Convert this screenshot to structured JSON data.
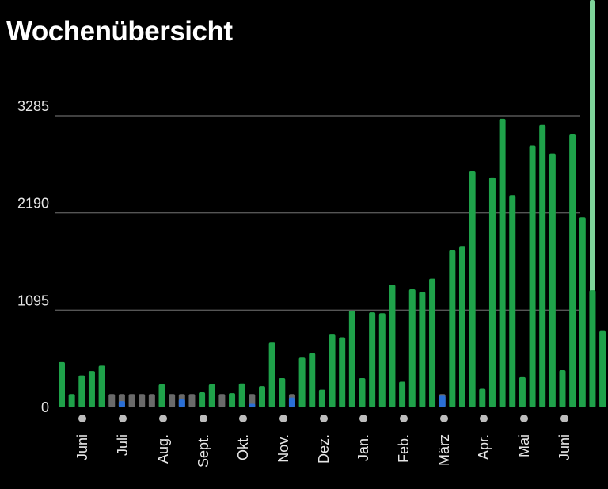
{
  "title": "Wochenübersicht",
  "colors": {
    "primary": "#1fa24a",
    "grey": "#6a6a6a",
    "blue": "#2a6fd6",
    "grid": "#555555",
    "dot": "#bdbdbd",
    "scrollbar": "#7fd49a"
  },
  "chart_data": {
    "type": "bar",
    "y_ticks": [
      0,
      1095,
      2190,
      3285
    ],
    "ylim": [
      0,
      3285
    ],
    "x_tick_labels": [
      "Juni",
      "Juli",
      "Aug.",
      "Sept.",
      "Okt.",
      "Nov.",
      "Dez.",
      "Jan.",
      "Feb.",
      "März",
      "Apr.",
      "Mai",
      "Juni"
    ],
    "series": [
      {
        "values": [
          510,
          150,
          360,
          410,
          470,
          0,
          0,
          0,
          0,
          0,
          260,
          0,
          0,
          0,
          170,
          260,
          0,
          160,
          270,
          0,
          240,
          730,
          330,
          0,
          560,
          610,
          200,
          820,
          790,
          1090,
          330,
          1070,
          1060,
          1380,
          290,
          1330,
          1300,
          1450,
          0,
          1770,
          1810,
          2660,
          210,
          2590,
          3250,
          2390,
          340,
          2950,
          3180,
          2860,
          420,
          3080,
          2140,
          1320,
          860
        ]
      },
      {
        "values": [
          0,
          0,
          0,
          0,
          0,
          150,
          150,
          150,
          150,
          150,
          0,
          150,
          150,
          150,
          0,
          0,
          150,
          0,
          0,
          150,
          0,
          0,
          0,
          150,
          0,
          0,
          0,
          0,
          0,
          0,
          0,
          0,
          0,
          0,
          0,
          0,
          0,
          0,
          150,
          0,
          0,
          0,
          0,
          0,
          0,
          0,
          0,
          0,
          0,
          0,
          0,
          0,
          0,
          0,
          0
        ]
      },
      {
        "values": [
          0,
          0,
          0,
          0,
          0,
          0,
          70,
          0,
          0,
          0,
          0,
          0,
          90,
          0,
          0,
          0,
          0,
          0,
          0,
          40,
          0,
          0,
          0,
          110,
          0,
          0,
          0,
          0,
          0,
          0,
          0,
          0,
          0,
          0,
          0,
          0,
          0,
          0,
          130,
          0,
          0,
          0,
          0,
          0,
          0,
          0,
          0,
          0,
          0,
          0,
          0,
          0,
          0,
          0,
          0
        ]
      }
    ]
  }
}
